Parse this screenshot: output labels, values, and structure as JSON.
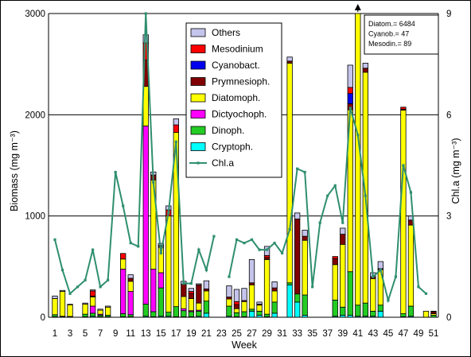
{
  "chart_data": {
    "type": "bar",
    "subtype": "stacked-bar-with-line",
    "xlabel": "Week",
    "ylabel": "Biomass (mg m⁻³)",
    "y2label": "Chl.a (mg m⁻³)",
    "ylim": [
      0,
      3000
    ],
    "y2lim": [
      0,
      9
    ],
    "yticks": [
      "0",
      "1000",
      "2000",
      "3000"
    ],
    "y2ticks": [
      "0",
      "3",
      "6",
      "9"
    ],
    "xticks": [
      "1",
      "3",
      "5",
      "7",
      "9",
      "11",
      "13",
      "15",
      "17",
      "19",
      "21",
      "23",
      "25",
      "27",
      "29",
      "31",
      "33",
      "35",
      "37",
      "39",
      "41",
      "43",
      "45",
      "47",
      "49",
      "51"
    ],
    "grid": "horizontal",
    "legend_position": "top-center",
    "stack_order": [
      "Cryptoph.",
      "Dinoph.",
      "Dictyochoph.",
      "Diatomoph.",
      "Prymnesioph.",
      "Cyanobact.",
      "Mesodinium",
      "Others"
    ],
    "legend": [
      {
        "name": "Others",
        "color": "#c4c4ec"
      },
      {
        "name": "Mesodinium",
        "color": "#ff0000"
      },
      {
        "name": "Cyanobact.",
        "color": "#0000ee"
      },
      {
        "name": "Prymnesioph.",
        "color": "#800000"
      },
      {
        "name": "Diatomoph.",
        "color": "#ffff00"
      },
      {
        "name": "Dictyochoph.",
        "color": "#ff00ff"
      },
      {
        "name": "Dinoph.",
        "color": "#22cc22"
      },
      {
        "name": "Cryptoph.",
        "color": "#00ffff"
      },
      {
        "name": "Chl.a",
        "color": "#2f8f6f"
      }
    ],
    "annotation": {
      "lines": [
        "Diatom.= 6484",
        "Cyanob.= 47",
        "Mesodin.= 89"
      ],
      "week": 41
    },
    "bars": [
      {
        "week": 1,
        "values": [
          5,
          20,
          0,
          160,
          0,
          0,
          0,
          25
        ]
      },
      {
        "week": 2,
        "values": [
          5,
          5,
          0,
          245,
          0,
          0,
          0,
          10
        ]
      },
      {
        "week": 3,
        "values": [
          3,
          5,
          0,
          115,
          0,
          0,
          0,
          5
        ]
      },
      {
        "week": 5,
        "values": [
          5,
          25,
          0,
          100,
          0,
          0,
          0,
          10
        ]
      },
      {
        "week": 6,
        "values": [
          10,
          30,
          70,
          90,
          10,
          0,
          50,
          10
        ]
      },
      {
        "week": 7,
        "values": [
          5,
          15,
          10,
          40,
          0,
          0,
          0,
          10
        ]
      },
      {
        "week": 8,
        "values": [
          5,
          15,
          0,
          80,
          0,
          0,
          0,
          10
        ]
      },
      {
        "week": 10,
        "values": [
          5,
          30,
          440,
          100,
          0,
          0,
          55,
          0
        ]
      },
      {
        "week": 11,
        "values": [
          5,
          20,
          230,
          100,
          30,
          0,
          0,
          35
        ]
      },
      {
        "week": 13,
        "values": [
          10,
          120,
          1760,
          390,
          260,
          0,
          170,
          80
        ]
      },
      {
        "week": 14,
        "values": [
          5,
          50,
          420,
          880,
          50,
          0,
          0,
          30
        ]
      },
      {
        "week": 15,
        "values": [
          10,
          280,
          150,
          250,
          20,
          0,
          0,
          20
        ]
      },
      {
        "week": 16,
        "values": [
          10,
          40,
          0,
          950,
          0,
          0,
          60,
          40
        ]
      },
      {
        "week": 17,
        "values": [
          5,
          100,
          0,
          1720,
          0,
          0,
          75,
          60
        ]
      },
      {
        "week": 18,
        "values": [
          5,
          60,
          20,
          120,
          120,
          0,
          0,
          30
        ]
      },
      {
        "week": 19,
        "values": [
          5,
          50,
          10,
          120,
          50,
          0,
          20,
          30
        ]
      },
      {
        "week": 20,
        "values": [
          10,
          50,
          10,
          70,
          180,
          0,
          0,
          10
        ]
      },
      {
        "week": 21,
        "values": [
          40,
          120,
          0,
          100,
          20,
          0,
          0,
          80
        ]
      },
      {
        "week": 24,
        "values": [
          10,
          100,
          0,
          70,
          20,
          0,
          0,
          110
        ]
      },
      {
        "week": 25,
        "values": [
          5,
          40,
          0,
          40,
          40,
          0,
          30,
          120
        ]
      },
      {
        "week": 26,
        "values": [
          5,
          50,
          0,
          100,
          10,
          0,
          0,
          120
        ]
      },
      {
        "week": 27,
        "values": [
          60,
          20,
          0,
          240,
          20,
          0,
          0,
          230
        ]
      },
      {
        "week": 28,
        "values": [
          20,
          40,
          0,
          60,
          10,
          0,
          0,
          20
        ]
      },
      {
        "week": 29,
        "values": [
          5,
          25,
          0,
          540,
          20,
          0,
          20,
          90
        ]
      },
      {
        "week": 30,
        "values": [
          40,
          110,
          0,
          110,
          30,
          0,
          0,
          60
        ]
      },
      {
        "week": 32,
        "values": [
          320,
          20,
          0,
          2170,
          20,
          0,
          0,
          40
        ]
      },
      {
        "week": 33,
        "values": [
          150,
          80,
          0,
          0,
          740,
          0,
          0,
          60
        ]
      },
      {
        "week": 34,
        "values": [
          20,
          200,
          0,
          540,
          40,
          0,
          0,
          60
        ]
      },
      {
        "week": 38,
        "values": [
          10,
          160,
          0,
          350,
          60,
          0,
          20,
          0
        ]
      },
      {
        "week": 39,
        "values": [
          20,
          80,
          0,
          620,
          100,
          0,
          0,
          60
        ]
      },
      {
        "week": 40,
        "values": [
          20,
          430,
          0,
          1600,
          60,
          100,
          60,
          220
        ]
      },
      {
        "week": 41,
        "values": [
          10,
          110,
          0,
          2880,
          0,
          0,
          0,
          0
        ]
      },
      {
        "week": 42,
        "values": [
          10,
          130,
          0,
          2280,
          40,
          0,
          0,
          50
        ]
      },
      {
        "week": 43,
        "values": [
          10,
          50,
          0,
          320,
          20,
          0,
          0,
          40
        ]
      },
      {
        "week": 44,
        "values": [
          60,
          60,
          0,
          350,
          10,
          0,
          0,
          70
        ]
      },
      {
        "week": 47,
        "values": [
          5,
          30,
          0,
          2010,
          10,
          0,
          20,
          0
        ]
      },
      {
        "week": 48,
        "values": [
          10,
          100,
          0,
          800,
          50,
          0,
          0,
          40
        ]
      },
      {
        "week": 50,
        "values": [
          0,
          0,
          0,
          60,
          0,
          0,
          0,
          0
        ]
      },
      {
        "week": 51,
        "values": [
          0,
          20,
          0,
          15,
          20,
          0,
          0,
          5
        ]
      }
    ],
    "chla": {
      "weeks": [
        1,
        2,
        3,
        4,
        5,
        6,
        7,
        8,
        9,
        10,
        11,
        12,
        13,
        14,
        15,
        16,
        17,
        18,
        19,
        20,
        21,
        22,
        24,
        25,
        26,
        27,
        28,
        29,
        30,
        31,
        32,
        33,
        34,
        35,
        36,
        37,
        38,
        39,
        40,
        41,
        42,
        43,
        44,
        45,
        46,
        47,
        48,
        49,
        50
      ],
      "values": [
        2.3,
        1.4,
        0.7,
        0.9,
        1.1,
        2.0,
        0.9,
        1.1,
        4.3,
        3.3,
        2.2,
        2.1,
        9.0,
        4.0,
        1.9,
        3.1,
        5.2,
        1.0,
        1.0,
        2.0,
        1.4,
        2.4,
        1.2,
        2.3,
        2.2,
        2.3,
        2.0,
        2.0,
        2.2,
        1.9,
        2.6,
        4.4,
        4.3,
        0.9,
        2.8,
        3.6,
        3.9,
        2.8,
        6.2,
        5.4,
        3.6,
        1.2,
        1.4,
        0.5,
        1.2,
        4.5,
        3.7,
        0.9,
        0.7
      ]
    }
  }
}
